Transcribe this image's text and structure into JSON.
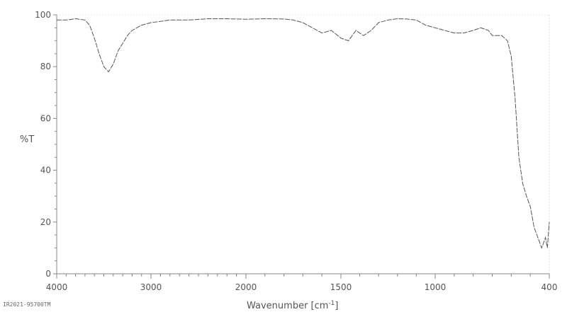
{
  "chart_data": {
    "type": "line",
    "title": "",
    "xlabel": "Wavenumber [cm",
    "xlabel_sup": "-1",
    "xlabel_suffix": "]",
    "ylabel": "%T",
    "xlim": [
      4000,
      400
    ],
    "ylim": [
      0,
      100
    ],
    "xticks": [
      "4000",
      "3000",
      "2000",
      "1500",
      "1000",
      "400"
    ],
    "yticks": [
      "0",
      "20",
      "40",
      "60",
      "80",
      "100"
    ],
    "grid": false,
    "footer_id": "IR2021-95700TM",
    "line_color": "#555555",
    "series": [
      {
        "x": [
          4000,
          3900,
          3800,
          3700,
          3650,
          3600,
          3550,
          3500,
          3450,
          3400,
          3350,
          3300,
          3250,
          3200,
          3100,
          3000,
          2900,
          2800,
          2600,
          2400,
          2200,
          2000,
          1900,
          1800,
          1750,
          1700,
          1650,
          1600,
          1550,
          1500,
          1460,
          1420,
          1380,
          1340,
          1300,
          1250,
          1200,
          1150,
          1100,
          1050,
          1000,
          950,
          900,
          850,
          800,
          760,
          720,
          700,
          680,
          650,
          620,
          600,
          580,
          560,
          540,
          520,
          500,
          480,
          460,
          440,
          430,
          420,
          410,
          400
        ],
        "y": [
          98,
          98,
          98.5,
          98,
          96,
          91,
          85,
          80,
          78,
          81,
          86,
          89,
          92,
          94,
          96,
          97,
          97.5,
          98,
          98,
          98.5,
          98.5,
          98.3,
          98.5,
          98.4,
          98,
          97,
          95,
          93,
          94,
          91,
          90,
          94,
          92,
          94,
          97,
          98,
          98.5,
          98.4,
          98,
          96,
          95,
          94,
          93,
          93,
          94,
          95,
          94,
          92,
          92,
          92,
          90,
          84,
          68,
          45,
          35,
          30,
          26,
          18,
          14,
          10,
          12,
          14,
          10,
          20
        ]
      }
    ]
  }
}
